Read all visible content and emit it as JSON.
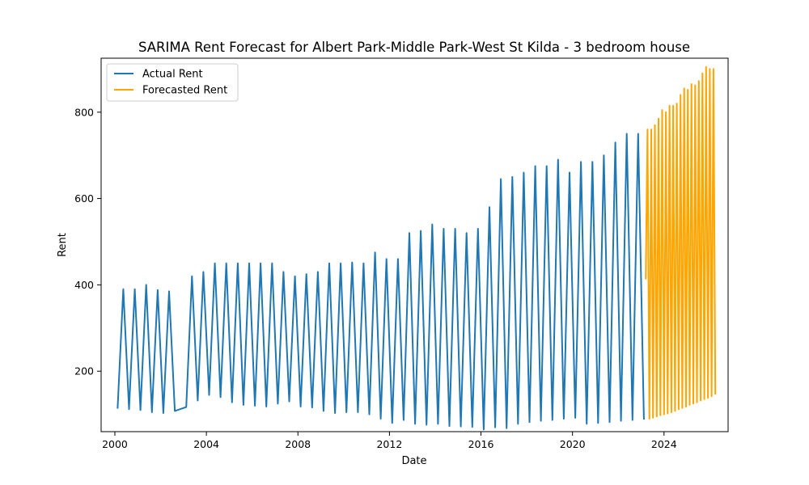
{
  "chart_data": {
    "type": "line",
    "title": "SARIMA Rent Forecast for Albert Park-Middle Park-West St Kilda - 3 bedroom house",
    "xlabel": "Date",
    "ylabel": "Rent",
    "xlim": [
      1999.4,
      2026.8
    ],
    "ylim": [
      60,
      925
    ],
    "xticks": [
      2000,
      2004,
      2008,
      2012,
      2016,
      2020,
      2024
    ],
    "xtick_labels": [
      "2000",
      "2004",
      "2008",
      "2012",
      "2016",
      "2020",
      "2024"
    ],
    "yticks": [
      200,
      400,
      600,
      800
    ],
    "ytick_labels": [
      "200",
      "400",
      "600",
      "800"
    ],
    "grid": false,
    "legend_position": "top-left",
    "series": [
      {
        "name": "Actual Rent",
        "color": "#1f77b4",
        "x": [
          2000.12,
          2000.37,
          2000.62,
          2000.87,
          2001.12,
          2001.37,
          2001.62,
          2001.87,
          2002.12,
          2002.37,
          2002.62,
          2003.12,
          2003.37,
          2003.62,
          2003.87,
          2004.12,
          2004.37,
          2004.62,
          2004.87,
          2005.12,
          2005.37,
          2005.62,
          2005.87,
          2006.12,
          2006.37,
          2006.62,
          2006.87,
          2007.12,
          2007.37,
          2007.62,
          2007.87,
          2008.12,
          2008.37,
          2008.62,
          2008.87,
          2009.12,
          2009.37,
          2009.62,
          2009.87,
          2010.12,
          2010.37,
          2010.62,
          2010.87,
          2011.12,
          2011.37,
          2011.62,
          2011.87,
          2012.12,
          2012.37,
          2012.62,
          2012.87,
          2013.12,
          2013.37,
          2013.62,
          2013.87,
          2014.12,
          2014.37,
          2014.62,
          2014.87,
          2015.12,
          2015.37,
          2015.62,
          2015.87,
          2016.12,
          2016.37,
          2016.62,
          2016.87,
          2017.12,
          2017.37,
          2017.62,
          2017.87,
          2018.12,
          2018.37,
          2018.62,
          2018.87,
          2019.12,
          2019.37,
          2019.62,
          2019.87,
          2020.12,
          2020.37,
          2020.62,
          2020.87,
          2021.12,
          2021.37,
          2021.62,
          2021.87,
          2022.12,
          2022.37,
          2022.62,
          2022.87,
          2023.12
        ],
        "y": [
          115,
          390,
          112,
          390,
          110,
          400,
          105,
          388,
          103,
          385,
          108,
          117,
          420,
          132,
          430,
          145,
          450,
          140,
          450,
          128,
          450,
          122,
          450,
          120,
          450,
          118,
          450,
          125,
          430,
          130,
          420,
          118,
          425,
          116,
          430,
          108,
          450,
          103,
          450,
          105,
          452,
          105,
          450,
          100,
          475,
          90,
          460,
          80,
          460,
          87,
          520,
          78,
          525,
          76,
          540,
          78,
          530,
          73,
          530,
          72,
          520,
          71,
          530,
          65,
          580,
          70,
          645,
          68,
          650,
          78,
          660,
          82,
          675,
          85,
          675,
          87,
          690,
          90,
          660,
          92,
          685,
          78,
          685,
          80,
          700,
          82,
          730,
          85,
          750,
          87,
          750,
          90
        ]
      },
      {
        "name": "Forecasted Rent",
        "color": "#ffa500",
        "x": [
          2023.2,
          2023.28,
          2023.36,
          2023.44,
          2023.52,
          2023.6,
          2023.68,
          2023.76,
          2023.84,
          2023.92,
          2024.0,
          2024.08,
          2024.16,
          2024.24,
          2024.32,
          2024.4,
          2024.48,
          2024.56,
          2024.64,
          2024.72,
          2024.8,
          2024.88,
          2024.96,
          2025.04,
          2025.12,
          2025.2,
          2025.28,
          2025.36,
          2025.44,
          2025.52,
          2025.6,
          2025.68,
          2025.76,
          2025.84,
          2025.92,
          2026.0,
          2026.08,
          2026.16,
          2026.24
        ],
        "y": [
          415,
          760,
          90,
          760,
          92,
          770,
          95,
          785,
          98,
          805,
          100,
          800,
          102,
          815,
          105,
          815,
          108,
          820,
          112,
          840,
          115,
          855,
          118,
          852,
          122,
          865,
          125,
          862,
          128,
          872,
          132,
          890,
          135,
          905,
          138,
          900,
          142,
          900,
          148
        ]
      }
    ]
  }
}
